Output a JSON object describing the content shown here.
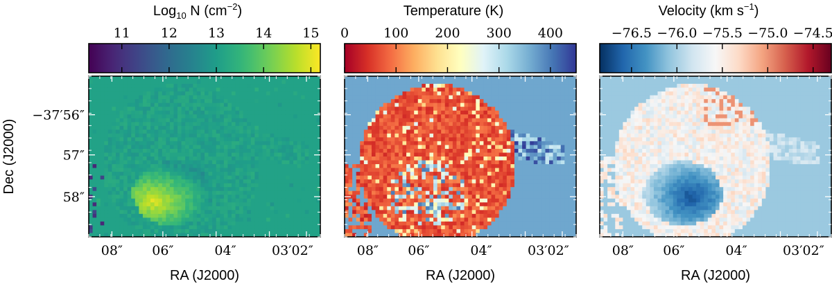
{
  "chart_data": [
    {
      "type": "heatmap",
      "colorbar": {
        "label": "Log₁₀ N (cm⁻²)",
        "label_main": "Log",
        "label_sub": "10",
        "label_rest": " N (cm",
        "label_sup": "−2",
        "label_close": ")",
        "range": [
          10.3,
          15.2
        ],
        "ticks": [
          11,
          12,
          13,
          14,
          15
        ],
        "tick_labels": [
          "11",
          "12",
          "13",
          "14",
          "15"
        ],
        "colormap": "viridis"
      },
      "background_value": 13.1,
      "peak_value": 14.9,
      "xlabel": "RA (J2000)",
      "ylabel": "Dec (J2000)",
      "xtick_labels": [
        "08″",
        "06″",
        "04″",
        "03′02″"
      ],
      "ytick_labels": [
        "−37′56″",
        "57″",
        "58″"
      ]
    },
    {
      "type": "heatmap",
      "colorbar": {
        "label": "Temperature (K)",
        "range": [
          0,
          450
        ],
        "ticks": [
          0,
          100,
          200,
          300,
          400
        ],
        "tick_labels": [
          "0",
          "100",
          "200",
          "300",
          "400"
        ],
        "colormap": "RdYlBu"
      },
      "background_value": 365,
      "hot_value": 40,
      "xlabel": "RA (J2000)",
      "xtick_labels": [
        "08″",
        "06″",
        "04″",
        "03′02″"
      ]
    },
    {
      "type": "heatmap",
      "colorbar": {
        "label": "Velocity (km s⁻¹)",
        "label_main": "Velocity (km s",
        "label_sup": "−1",
        "label_close": ")",
        "range": [
          -76.85,
          -74.3
        ],
        "ticks": [
          -76.5,
          -76.0,
          -75.5,
          -75.0,
          -74.5
        ],
        "tick_labels": [
          "−76.5",
          "−76.0",
          "−75.5",
          "−75.0",
          "−74.5"
        ],
        "colormap": "RdBu_r"
      },
      "background_value": -76.05,
      "xlabel": "RA (J2000)",
      "xtick_labels": [
        "08″",
        "06″",
        "04″",
        "03′02″"
      ]
    }
  ]
}
